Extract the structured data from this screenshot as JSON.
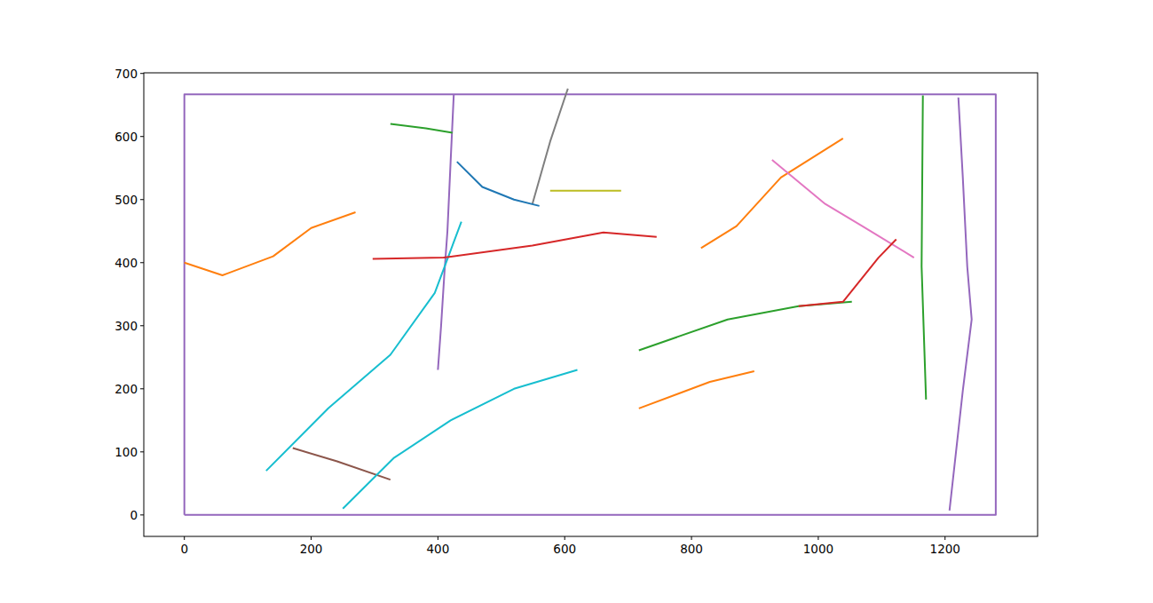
{
  "chart_data": {
    "type": "line",
    "xlim": [
      -64,
      1346
    ],
    "ylim": [
      -34,
      701
    ],
    "xticks": [
      0,
      200,
      400,
      600,
      800,
      1000,
      1200
    ],
    "yticks": [
      0,
      100,
      200,
      300,
      400,
      500,
      600,
      700
    ],
    "grid": false,
    "series": [
      {
        "color": "#9467bd",
        "x": [
          0,
          1280,
          1280,
          0,
          0
        ],
        "values": [
          0,
          0,
          667,
          667,
          0
        ]
      },
      {
        "color": "#9467bd",
        "x": [
          425,
          420,
          415,
          410,
          405,
          400
        ],
        "values": [
          667,
          560,
          450,
          380,
          300,
          230
        ]
      },
      {
        "color": "#ff7f0e",
        "x": [
          815,
          871,
          941,
          1039
        ],
        "values": [
          423,
          458,
          535,
          597
        ]
      },
      {
        "color": "#17becf",
        "x": [
          129,
          227,
          325,
          395,
          437
        ],
        "values": [
          70,
          169,
          254,
          352,
          465
        ]
      },
      {
        "color": "#d62728",
        "x": [
          297,
          409,
          549,
          661,
          745
        ],
        "values": [
          406,
          408,
          427,
          448,
          441
        ]
      },
      {
        "color": "#2ca02c",
        "x": [
          717,
          857,
          969,
          1053
        ],
        "values": [
          261,
          310,
          331,
          338
        ]
      },
      {
        "color": "#2ca02c",
        "x": [
          1165,
          1163,
          1170
        ],
        "values": [
          665,
          394,
          183
        ]
      },
      {
        "color": "#9467bd",
        "x": [
          1221,
          1228,
          1235,
          1242,
          1228,
          1207
        ],
        "values": [
          662,
          535,
          394,
          310,
          197,
          7
        ]
      },
      {
        "color": "#ff7f0e",
        "x": [
          717,
          829,
          899
        ],
        "values": [
          169,
          211,
          228
        ]
      },
      {
        "color": "#e377c2",
        "x": [
          927,
          1011,
          1081,
          1151
        ],
        "values": [
          563,
          493,
          451,
          408
        ]
      },
      {
        "color": "#7f7f7f",
        "x": [
          605,
          577,
          549
        ],
        "values": [
          676,
          592,
          493
        ]
      },
      {
        "color": "#8c564b",
        "x": [
          171,
          241,
          325
        ],
        "values": [
          106,
          85,
          56
        ]
      },
      {
        "color": "#d62728",
        "x": [
          969,
          1039,
          1095,
          1123
        ],
        "values": [
          331,
          338,
          408,
          437
        ]
      },
      {
        "color": "#bcbd22",
        "x": [
          577,
          689
        ],
        "values": [
          514,
          514
        ]
      },
      {
        "color": "#2ca02c",
        "x": [
          325,
          381,
          423
        ],
        "values": [
          620,
          613,
          606
        ]
      },
      {
        "color": "#ff7f0e",
        "x": [
          0,
          60,
          140,
          200,
          270
        ],
        "values": [
          400,
          380,
          410,
          455,
          480
        ]
      },
      {
        "color": "#17becf",
        "x": [
          250,
          330,
          420,
          520,
          620
        ],
        "values": [
          10,
          90,
          150,
          200,
          230
        ]
      },
      {
        "color": "#1f77b4",
        "x": [
          430,
          470,
          520,
          560
        ],
        "values": [
          560,
          520,
          500,
          490
        ]
      }
    ]
  }
}
